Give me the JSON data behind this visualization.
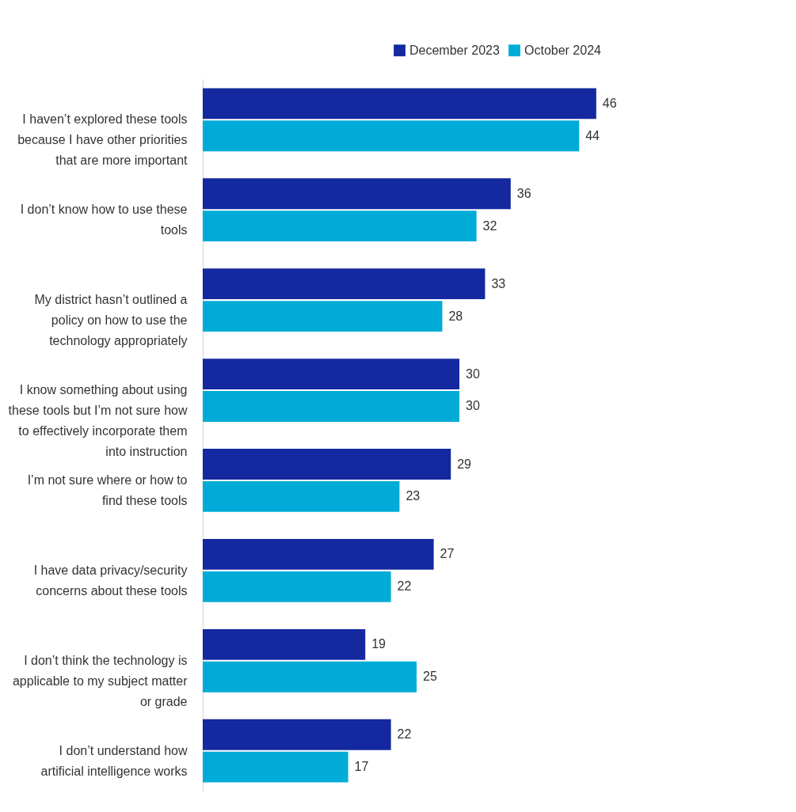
{
  "chart_data": {
    "type": "bar",
    "orientation": "horizontal",
    "data_labels": true,
    "legend": "top right",
    "grid": false,
    "categories": [
      "I haven’t explored these tools because I have other priorities that are more important",
      "I don’t know how to use these tools",
      "My district hasn’t outlined a policy on how to use the technology appropriately",
      "I know something about using these tools but I’m not sure how to effectively incorporate them into instruction",
      "I’m not sure where or how to find these tools",
      "I have data privacy/security concerns about these tools",
      "I don’t think the technology is applicable to my subject matter or grade",
      "I don’t understand how artificial intelligence works"
    ],
    "series": [
      {
        "name": "December 2023",
        "color": "#1428a0",
        "values": [
          46,
          36,
          33,
          30,
          29,
          27,
          19,
          22
        ]
      },
      {
        "name": "October 2024",
        "color": "#00acd7",
        "values": [
          44,
          32,
          28,
          30,
          23,
          22,
          25,
          17
        ]
      }
    ]
  }
}
